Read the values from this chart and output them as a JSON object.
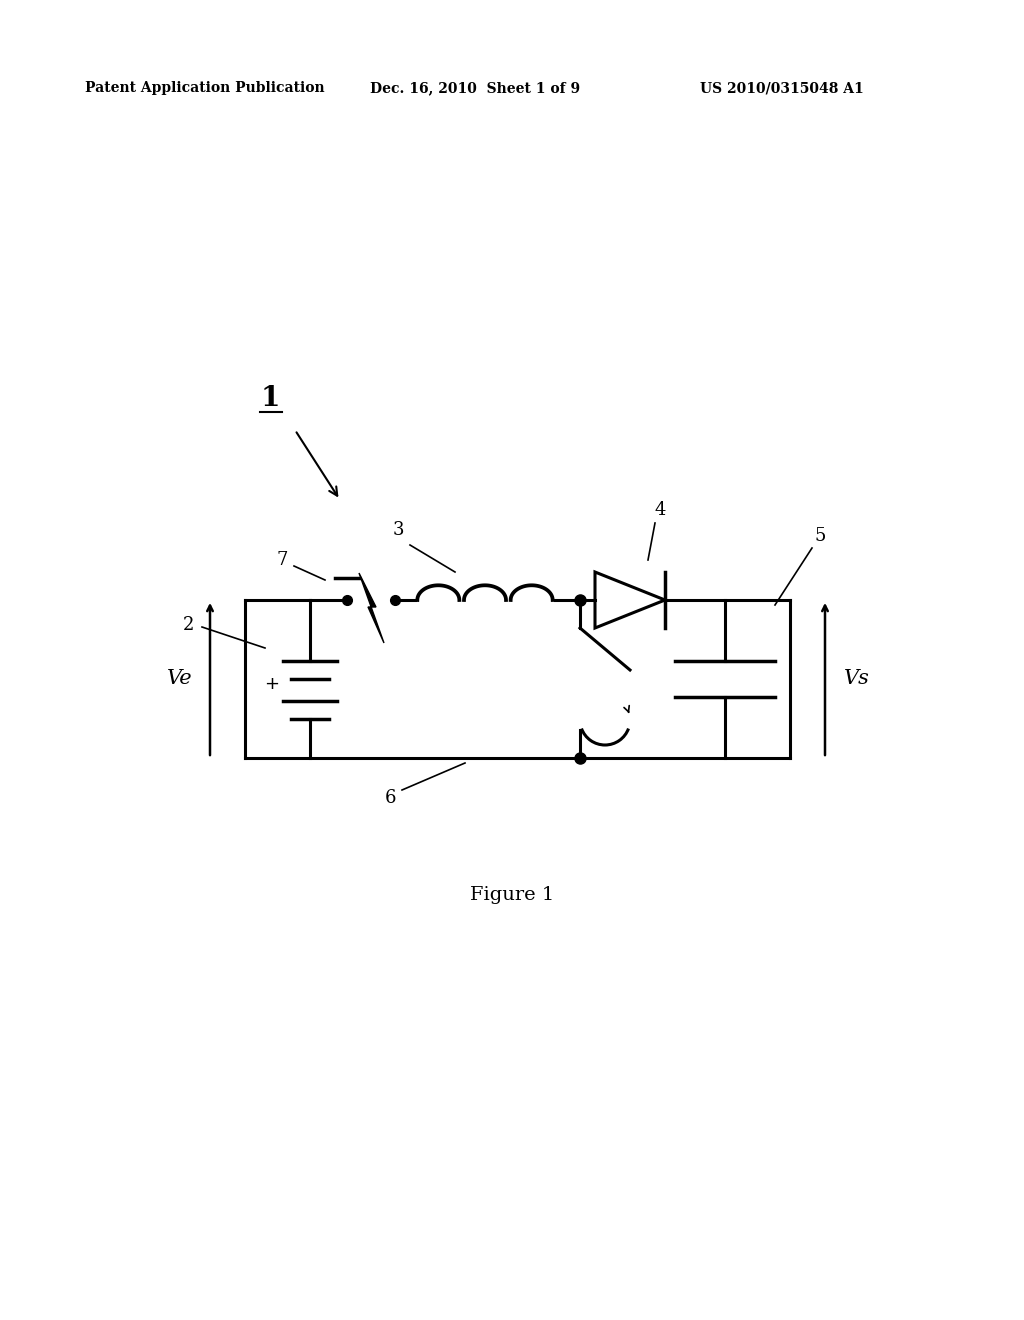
{
  "bg_color": "#ffffff",
  "line_color": "#000000",
  "header_left": "Patent Application Publication",
  "header_mid": "Dec. 16, 2010  Sheet 1 of 9",
  "header_right": "US 2010/0315048 A1",
  "figure_caption": "Figure 1",
  "label_1": "1",
  "label_2": "2",
  "label_3": "3",
  "label_4": "4",
  "label_5": "5",
  "label_6": "6",
  "label_7": "7",
  "label_Ve": "Ve",
  "label_Vs": "Vs"
}
